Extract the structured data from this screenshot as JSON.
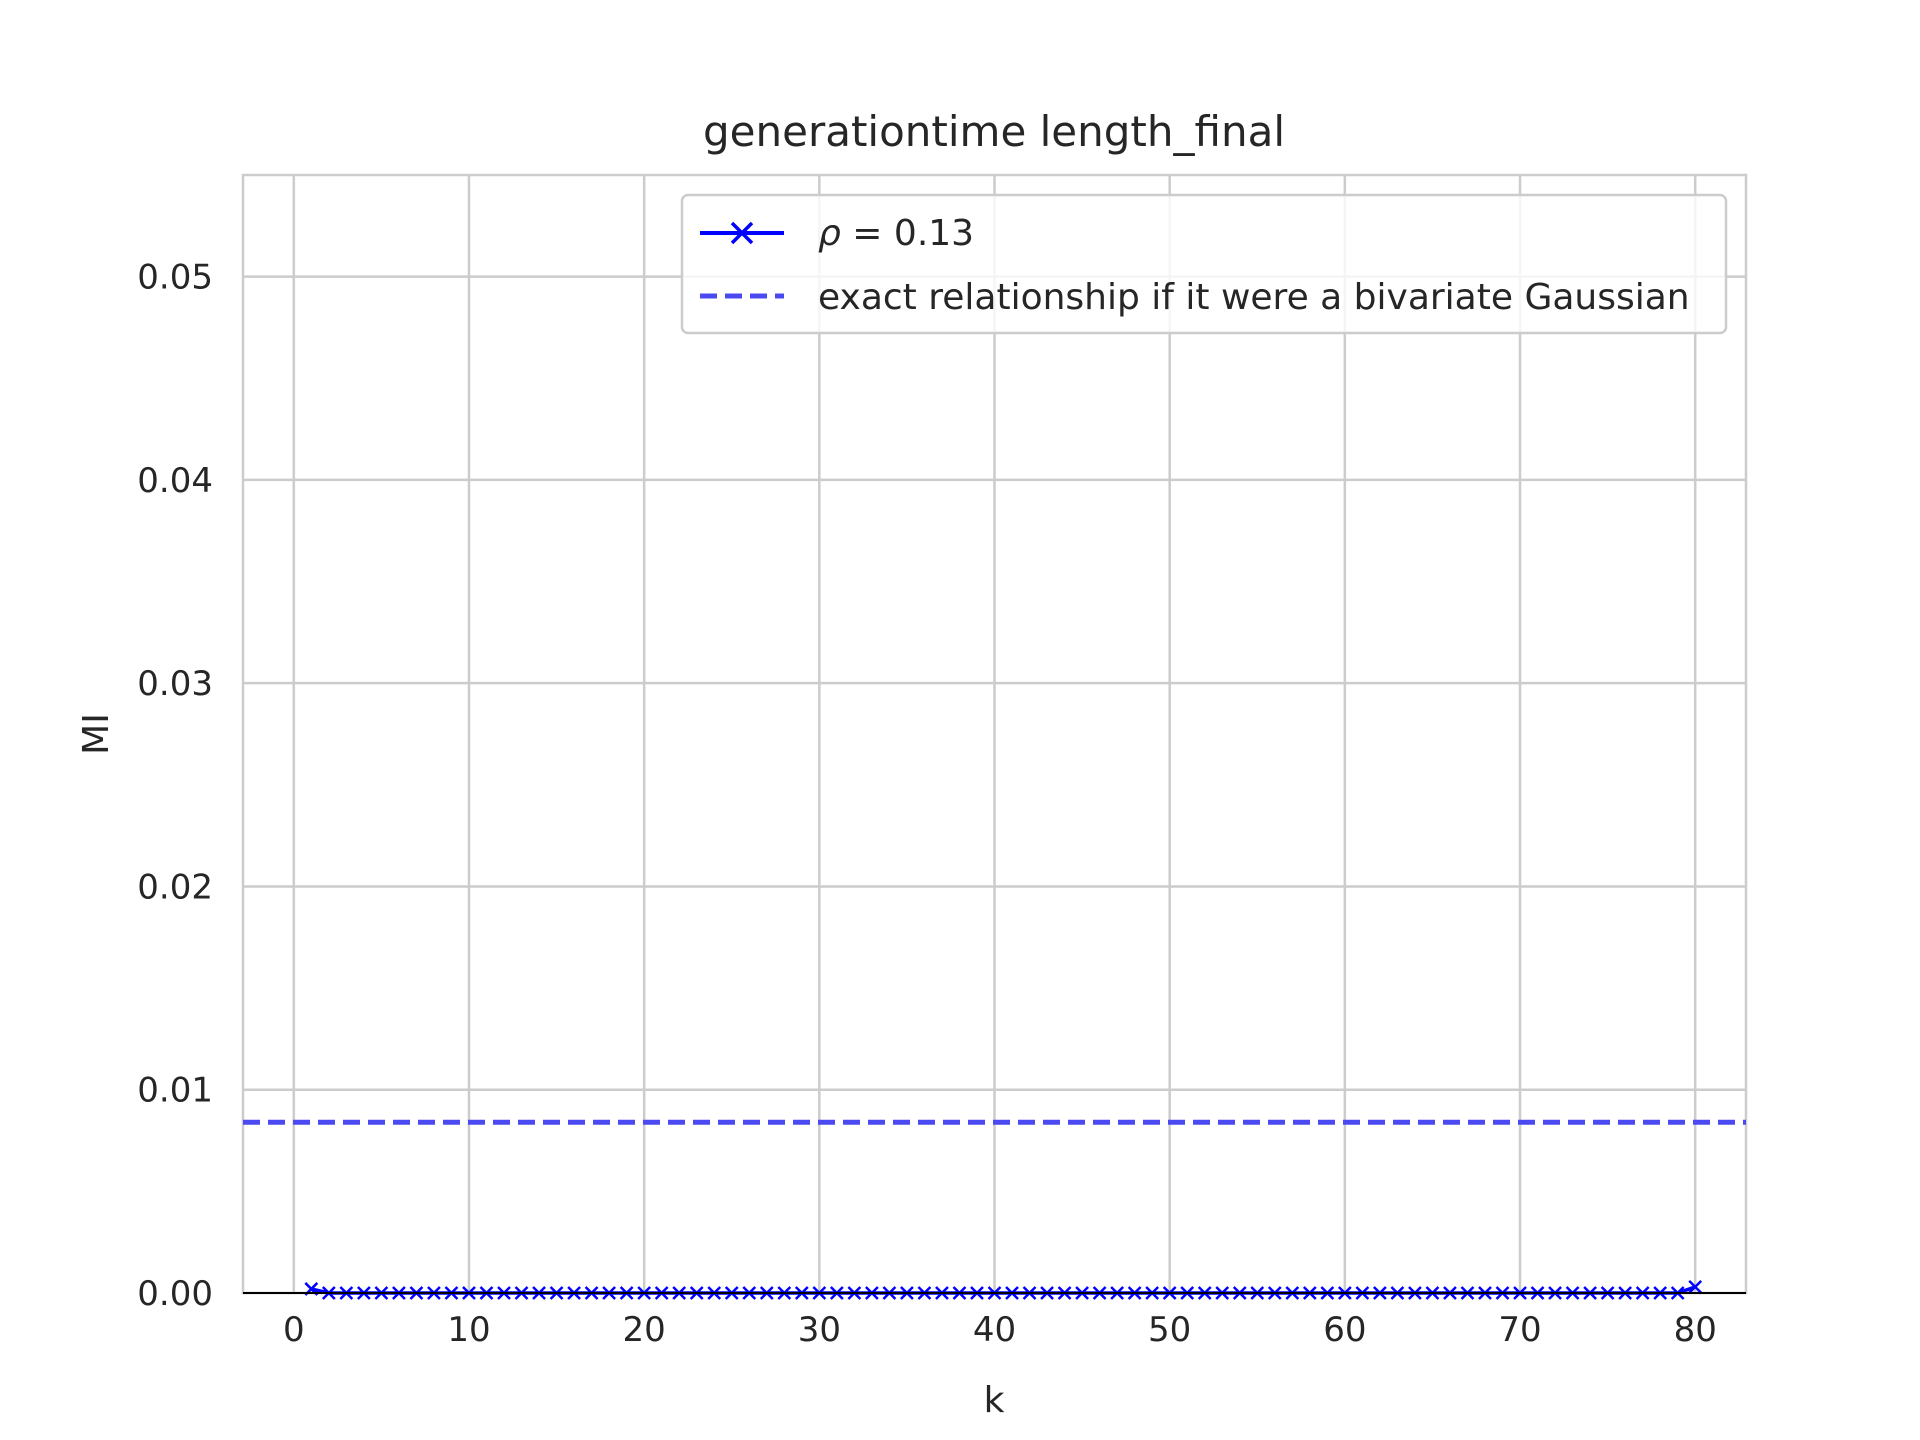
{
  "chart_data": {
    "type": "line",
    "title": "generationtime length_final",
    "xlabel": "k",
    "ylabel": "MI",
    "xlim": [
      -2.9,
      82.9
    ],
    "ylim": [
      0.0,
      0.055
    ],
    "xticks": [
      0,
      10,
      20,
      30,
      40,
      50,
      60,
      70,
      80
    ],
    "xtick_labels": [
      "0",
      "10",
      "20",
      "30",
      "40",
      "50",
      "60",
      "70",
      "80"
    ],
    "yticks": [
      0.0,
      0.01,
      0.02,
      0.03,
      0.04,
      0.05
    ],
    "ytick_labels": [
      "0.00",
      "0.01",
      "0.02",
      "0.03",
      "0.04",
      "0.05"
    ],
    "grid": true,
    "legend_position": "top-right",
    "series": [
      {
        "name": "ρ = 0.13",
        "style": "solid line with x markers",
        "color": "#0000ff",
        "x": [
          1,
          2,
          3,
          4,
          5,
          6,
          7,
          8,
          9,
          10,
          11,
          12,
          13,
          14,
          15,
          16,
          17,
          18,
          19,
          20,
          21,
          22,
          23,
          24,
          25,
          26,
          27,
          28,
          29,
          30,
          31,
          32,
          33,
          34,
          35,
          36,
          37,
          38,
          39,
          40,
          41,
          42,
          43,
          44,
          45,
          46,
          47,
          48,
          49,
          50,
          51,
          52,
          53,
          54,
          55,
          56,
          57,
          58,
          59,
          60,
          61,
          62,
          63,
          64,
          65,
          66,
          67,
          68,
          69,
          70,
          71,
          72,
          73,
          74,
          75,
          76,
          77,
          78,
          79,
          80
        ],
        "y": [
          0.0002,
          0,
          0,
          0,
          0,
          0,
          0,
          0,
          0,
          0,
          0,
          0,
          0,
          0,
          0,
          0,
          0,
          0,
          0,
          0,
          0,
          0,
          0,
          0,
          0,
          0,
          0,
          0,
          0,
          0,
          0,
          0,
          0,
          0,
          0,
          0,
          0,
          0,
          0,
          0,
          0,
          0,
          0,
          0,
          0,
          0,
          0,
          0,
          0,
          0,
          0,
          0,
          0,
          0,
          0,
          0,
          0,
          0,
          0,
          0,
          0,
          0,
          0,
          0,
          0,
          0,
          0,
          0,
          0,
          0,
          0,
          0,
          0,
          0,
          0,
          0,
          0,
          0,
          0,
          0.0003
        ]
      },
      {
        "name": "exact relationship if it were a bivariate Gaussian",
        "style": "dashed horizontal line",
        "color": "#4a4af0",
        "y": 0.0084
      }
    ],
    "legend": [
      {
        "symbol": "ρ",
        "rest": " = 0.13"
      },
      {
        "text": "exact relationship if it were a bivariate Gaussian"
      }
    ]
  }
}
